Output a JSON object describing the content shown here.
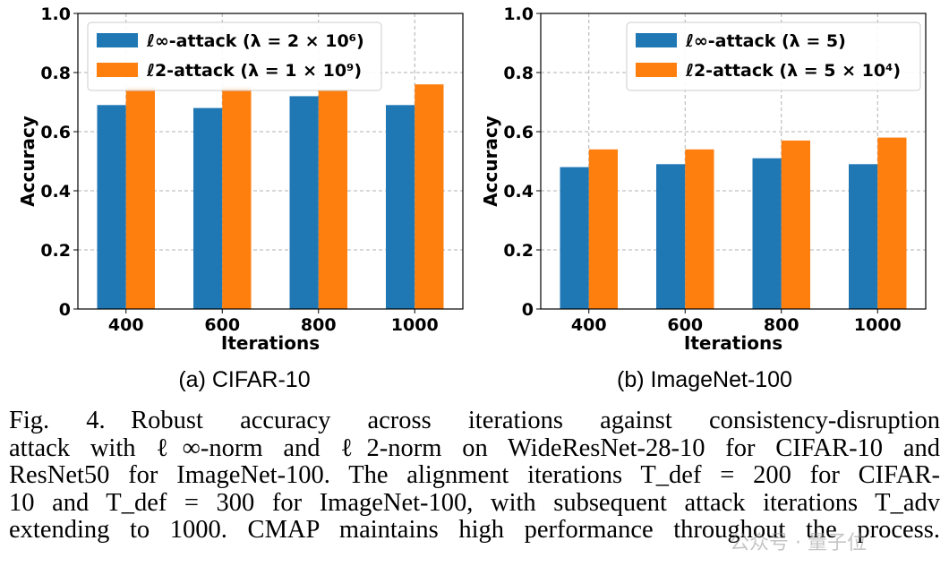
{
  "chart_data": [
    {
      "type": "bar",
      "panel_title": "(a) CIFAR-10",
      "xlabel": "Iterations",
      "ylabel": "Accuracy",
      "categories": [
        "400",
        "600",
        "800",
        "1000"
      ],
      "ylim": [
        0,
        1.0
      ],
      "yticks": [
        "0",
        "0.2",
        "0.4",
        "0.6",
        "0.8",
        "1.0"
      ],
      "grid": true,
      "legend_position": "top-left",
      "series": [
        {
          "name": "ℓ∞-attack (λ = 2 × 10⁶)",
          "color": "#1f77b4",
          "values": [
            0.69,
            0.68,
            0.72,
            0.69
          ]
        },
        {
          "name": "ℓ2-attack (λ = 1 × 10⁹)",
          "color": "#ff7f0e",
          "values": [
            0.75,
            0.75,
            0.74,
            0.76
          ]
        }
      ]
    },
    {
      "type": "bar",
      "panel_title": "(b) ImageNet-100",
      "xlabel": "Iterations",
      "ylabel": "Accuracy",
      "categories": [
        "400",
        "600",
        "800",
        "1000"
      ],
      "ylim": [
        0,
        1.0
      ],
      "yticks": [
        "0",
        "0.2",
        "0.4",
        "0.6",
        "0.8",
        "1.0"
      ],
      "grid": true,
      "legend_position": "top-right",
      "series": [
        {
          "name": "ℓ∞-attack (λ = 5)",
          "color": "#1f77b4",
          "values": [
            0.48,
            0.49,
            0.51,
            0.49
          ]
        },
        {
          "name": "ℓ2-attack (λ = 5 × 10⁴)",
          "color": "#ff7f0e",
          "values": [
            0.54,
            0.54,
            0.57,
            0.58
          ]
        }
      ]
    }
  ],
  "caption": {
    "lines": [
      "Fig. 4. Robust accuracy across iterations against consistency-disruption",
      "attack with ℓ∞-norm and ℓ2-norm on WideResNet-28-10 for CIFAR-10 and",
      "ResNet50 for ImageNet-100. The alignment iterations T_def = 200 for CIFAR-",
      "10 and T_def = 300 for ImageNet-100, with subsequent attack iterations T_adv",
      "extending to 1000. CMAP maintains high performance throughout the process."
    ]
  },
  "watermark": "公众号 · 量子位"
}
